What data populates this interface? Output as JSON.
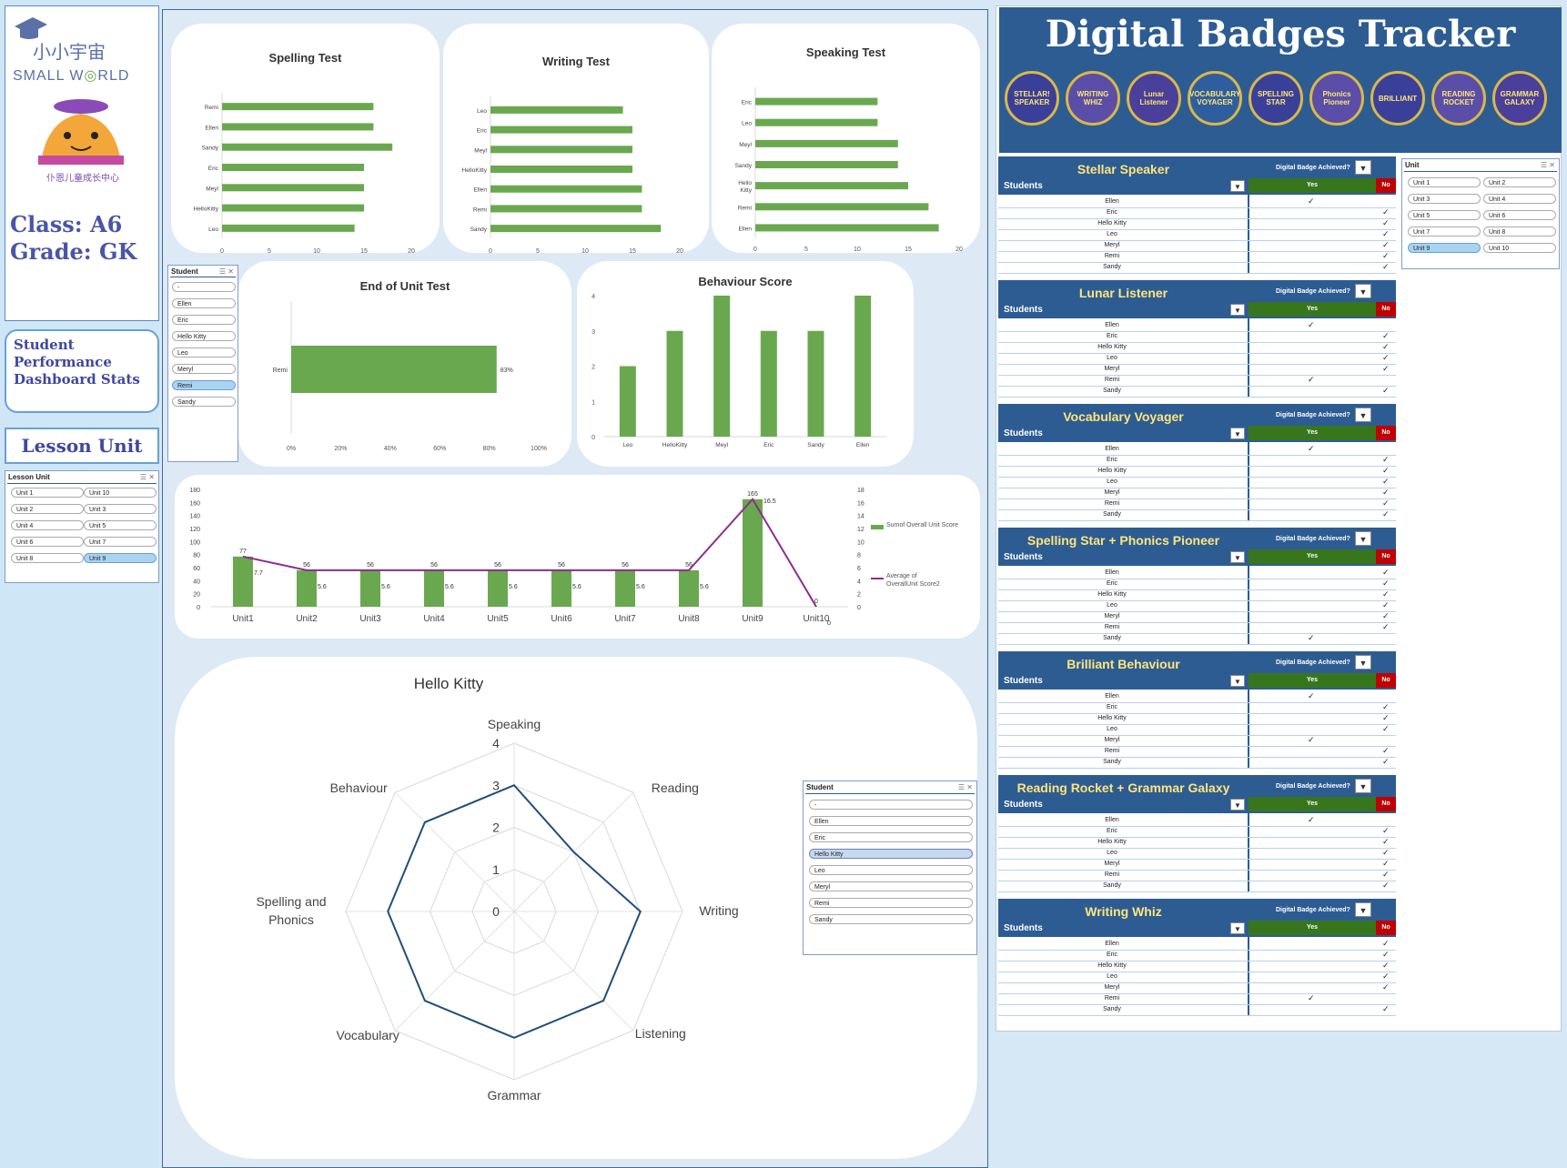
{
  "sidebar": {
    "logo_cn": "小小宇宙",
    "logo_en_1": "SMALL W",
    "logo_en_2": "RLD",
    "center_name": "仆恩儿童成长中心",
    "class_label": "Class: A6",
    "grade_label": "Grade: GK",
    "subtitle": "Student Performance Dashboard Stats",
    "lesson_unit_title": "Lesson Unit",
    "lesson_slicer": {
      "header": "Lesson Unit",
      "items": [
        "Unit 1",
        "Unit 10",
        "Unit 2",
        "Unit 3",
        "Unit 4",
        "Unit 5",
        "Unit 6",
        "Unit 7",
        "Unit 8",
        "Unit 9"
      ],
      "selected": "Unit 9"
    }
  },
  "student_slicer": {
    "header": "Student",
    "items": [
      "-",
      "Ellen",
      "Eric",
      "Hello Kitty",
      "Leo",
      "Meryl",
      "Remi",
      "Sandy"
    ],
    "selected": "Remi"
  },
  "student_slicer2": {
    "header": "Student",
    "items": [
      "-",
      "Ellen",
      "Eric",
      "Hello Kitty",
      "Leo",
      "Meryl",
      "Remi",
      "Sandy"
    ],
    "selected": "Hello Kitty"
  },
  "unit_slicer": {
    "header": "Unit",
    "items": [
      "Unit 1",
      "Unit 2",
      "Unit 3",
      "Unit 4",
      "Unit 5",
      "Unit 6",
      "Unit 7",
      "Unit 8",
      "Unit 9",
      "Unit 10"
    ],
    "selected": "Unit 9"
  },
  "badges": {
    "title": "Digital Badges Tracker",
    "badge_names": [
      "STELLAR! SPEAKER",
      "WRITING WHIZ",
      "Lunar Listener",
      "VOCABULARY VOYAGER",
      "SPELLING STAR",
      "Phonics Pioneer",
      "BRILLIANT",
      "READING ROCKET",
      "GRAMMAR GALAXY"
    ],
    "achieved_label": "Digital Badge Achieved?",
    "students_label": "Students",
    "yes_label": "Yes",
    "no_label": "No",
    "groups": [
      {
        "name": "Stellar Speaker",
        "rows": [
          [
            "Ellen",
            "y"
          ],
          [
            "Eric",
            "n"
          ],
          [
            "Hello Kitty",
            "n"
          ],
          [
            "Leo",
            "n"
          ],
          [
            "Meryl",
            "n"
          ],
          [
            "Remi",
            "n"
          ],
          [
            "Sandy",
            "n"
          ]
        ]
      },
      {
        "name": "Lunar Listener",
        "rows": [
          [
            "Ellen",
            "y"
          ],
          [
            "Eric",
            "n"
          ],
          [
            "Hello Kitty",
            "n"
          ],
          [
            "Leo",
            "n"
          ],
          [
            "Meryl",
            "n"
          ],
          [
            "Remi",
            "y"
          ],
          [
            "Sandy",
            "n"
          ]
        ]
      },
      {
        "name": "Vocabulary Voyager",
        "rows": [
          [
            "Ellen",
            "y"
          ],
          [
            "Eric",
            "n"
          ],
          [
            "Hello Kitty",
            "n"
          ],
          [
            "Leo",
            "n"
          ],
          [
            "Meryl",
            "n"
          ],
          [
            "Remi",
            "n"
          ],
          [
            "Sandy",
            "n"
          ]
        ]
      },
      {
        "name": "Spelling Star + Phonics Pioneer",
        "rows": [
          [
            "Ellen",
            "n"
          ],
          [
            "Eric",
            "n"
          ],
          [
            "Hello Kitty",
            "n"
          ],
          [
            "Leo",
            "n"
          ],
          [
            "Meryl",
            "n"
          ],
          [
            "Remi",
            "n"
          ],
          [
            "Sandy",
            "y"
          ]
        ]
      },
      {
        "name": "Brilliant Behaviour",
        "rows": [
          [
            "Ellen",
            "y"
          ],
          [
            "Eric",
            "n"
          ],
          [
            "Hello Kitty",
            "n"
          ],
          [
            "Leo",
            "n"
          ],
          [
            "Meryl",
            "y"
          ],
          [
            "Remi",
            "n"
          ],
          [
            "Sandy",
            "n"
          ]
        ]
      },
      {
        "name": "Reading Rocket + Grammar Galaxy",
        "rows": [
          [
            "Ellen",
            "y"
          ],
          [
            "Eric",
            "n"
          ],
          [
            "Hello Kitty",
            "n"
          ],
          [
            "Leo",
            "n"
          ],
          [
            "Meryl",
            "n"
          ],
          [
            "Remi",
            "n"
          ],
          [
            "Sandy",
            "n"
          ]
        ]
      },
      {
        "name": "Writing Whiz",
        "rows": [
          [
            "Ellen",
            "n"
          ],
          [
            "Eric",
            "n"
          ],
          [
            "Hello Kitty",
            "n"
          ],
          [
            "Leo",
            "n"
          ],
          [
            "Meryl",
            "n"
          ],
          [
            "Remi",
            "y"
          ],
          [
            "Sandy",
            "n"
          ]
        ]
      }
    ]
  },
  "chart_data": [
    {
      "type": "bar",
      "orientation": "horizontal",
      "title": "Spelling Test",
      "categories": [
        "Remi",
        "Ellen",
        "Sandy",
        "Eric",
        "Meyl",
        "HelloKitty",
        "Leo"
      ],
      "values": [
        16,
        16,
        18,
        15,
        15,
        15,
        14
      ],
      "xlim": [
        0,
        20
      ],
      "ticks": [
        0,
        5,
        10,
        15,
        20
      ]
    },
    {
      "type": "bar",
      "orientation": "horizontal",
      "title": "Writing Test",
      "categories": [
        "Leo",
        "Eric",
        "Meyl",
        "HelloKitty",
        "Ellen",
        "Remi",
        "Sandy"
      ],
      "values": [
        14,
        15,
        15,
        15,
        16,
        16,
        18
      ],
      "xlim": [
        0,
        20
      ],
      "ticks": [
        0,
        5,
        10,
        15,
        20
      ]
    },
    {
      "type": "bar",
      "orientation": "horizontal",
      "title": "Speaking Test",
      "categories": [
        "Eric",
        "Leo",
        "Meyl",
        "Sandy",
        "Hello Kitty",
        "Remi",
        "Ellen"
      ],
      "values": [
        12,
        12,
        14,
        14,
        15,
        17,
        18
      ],
      "xlim": [
        0,
        20
      ],
      "ticks": [
        0,
        5,
        10,
        15,
        20
      ]
    },
    {
      "type": "bar",
      "orientation": "horizontal",
      "title": "End of Unit Test",
      "categories": [
        "Remi"
      ],
      "values": [
        0.83
      ],
      "value_labels": [
        "83%"
      ],
      "xlim": [
        0,
        1
      ],
      "ticks": [
        "0%",
        "20%",
        "40%",
        "60%",
        "80%",
        "100%"
      ]
    },
    {
      "type": "bar",
      "title": "Behaviour Score",
      "categories": [
        "Leo",
        "HelloKitty",
        "Meyl",
        "Eric",
        "Sandy",
        "Ellen"
      ],
      "values": [
        2,
        3,
        4,
        3,
        3,
        4
      ],
      "ylim": [
        0,
        4
      ],
      "ticks": [
        0,
        1,
        2,
        3,
        4
      ]
    },
    {
      "type": "bar+line",
      "categories": [
        "Unit1",
        "Unit2",
        "Unit3",
        "Unit4",
        "Unit5",
        "Unit6",
        "Unit7",
        "Unit8",
        "Unit9",
        "Unit10"
      ],
      "series": [
        {
          "name": "Sumof Overall Unit Score",
          "type": "bar",
          "values": [
            77,
            56,
            56,
            56,
            56,
            56,
            56,
            56,
            165,
            0
          ]
        },
        {
          "name": "Average of OverallUnit Score2",
          "type": "line",
          "values": [
            7.7,
            5.6,
            5.6,
            5.6,
            5.6,
            5.6,
            5.6,
            5.6,
            16.5,
            0
          ]
        }
      ],
      "bar_labels": [
        "77",
        "56",
        "56",
        "56",
        "56",
        "56",
        "56",
        "56",
        "165",
        "0"
      ],
      "line_labels": [
        "7.7",
        "5.6",
        "5.6",
        "5.6",
        "5.6",
        "5.6",
        "5.6",
        "5.6",
        "16.5",
        "0"
      ],
      "ylim": [
        0,
        180
      ],
      "yticks": [
        0,
        20,
        40,
        60,
        80,
        100,
        120,
        140,
        160,
        180
      ],
      "y2lim": [
        0,
        18
      ],
      "y2ticks": [
        0,
        2,
        4,
        6,
        8,
        10,
        12,
        14,
        16,
        18
      ]
    },
    {
      "type": "radar",
      "title": "Hello Kitty",
      "axes": [
        "Speaking",
        "Reading",
        "Writing",
        "Listening",
        "Grammar",
        "Vocabulary",
        "Spelling and Phonics",
        "Behaviour"
      ],
      "values": [
        3,
        2,
        3,
        3,
        3,
        3,
        3,
        3
      ],
      "rlim": [
        0,
        4
      ],
      "ticks": [
        "0",
        "1",
        "2",
        "3",
        "4"
      ]
    }
  ]
}
